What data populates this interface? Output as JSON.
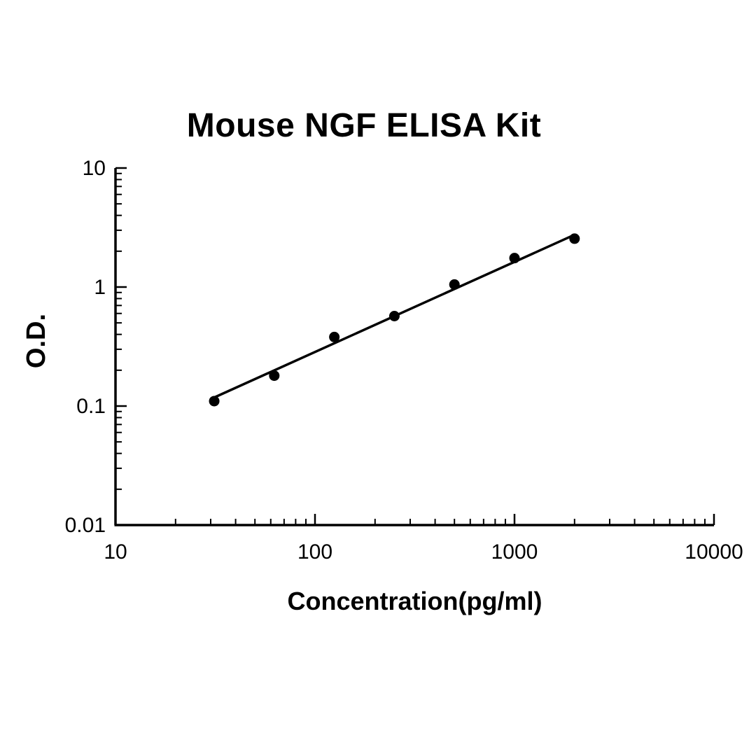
{
  "figure": {
    "background": "#ffffff",
    "ink_color": "#000000"
  },
  "chart_data": {
    "type": "scatter",
    "title": "Mouse NGF ELISA Kit",
    "xlabel": "Concentration(pg/ml)",
    "ylabel": "O.D.",
    "x_scale": "log",
    "y_scale": "log",
    "xlim": [
      10,
      10000
    ],
    "ylim": [
      0.01,
      10
    ],
    "x_ticks": [
      10,
      100,
      1000,
      10000
    ],
    "x_tick_labels": [
      "10",
      "100",
      "1000",
      "10000"
    ],
    "y_ticks": [
      0.01,
      0.1,
      1,
      10
    ],
    "y_tick_labels": [
      "0.01",
      "0.1",
      "1",
      "10"
    ],
    "grid": false,
    "legend": null,
    "series": [
      {
        "name": "standard-curve-points",
        "marker": "circle",
        "color": "#000000",
        "points": [
          {
            "x": 31.25,
            "y": 0.11
          },
          {
            "x": 62.5,
            "y": 0.18
          },
          {
            "x": 125,
            "y": 0.38
          },
          {
            "x": 250,
            "y": 0.57
          },
          {
            "x": 500,
            "y": 1.05
          },
          {
            "x": 1000,
            "y": 1.75
          },
          {
            "x": 2000,
            "y": 2.55
          }
        ]
      }
    ],
    "trendline": {
      "color": "#000000",
      "x": [
        31.25,
        2000
      ],
      "y": [
        0.118,
        2.75
      ]
    }
  }
}
